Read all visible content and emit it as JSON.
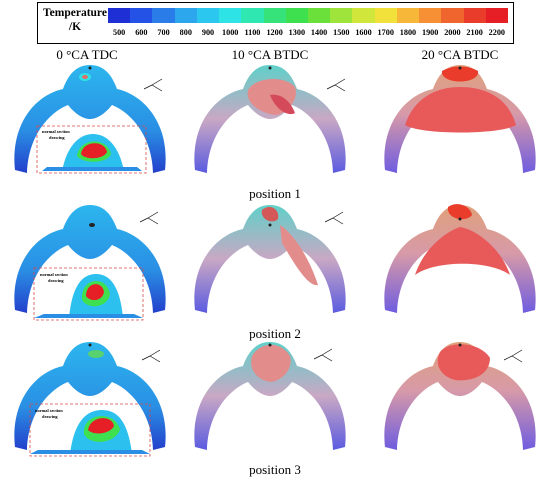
{
  "legend": {
    "title_line1": "Temperature",
    "title_line2": "/K",
    "ticks": [
      "500",
      "600",
      "700",
      "800",
      "900",
      "1000",
      "1100",
      "1200",
      "1300",
      "1400",
      "1500",
      "1600",
      "1700",
      "1800",
      "1900",
      "2000",
      "2100",
      "2200"
    ],
    "colors": [
      "#1f2fd6",
      "#2452e6",
      "#2a7de9",
      "#2ca6ec",
      "#2bc7ee",
      "#2ee3e6",
      "#2fe7b0",
      "#35e37a",
      "#3fe050",
      "#6be03a",
      "#9fe43a",
      "#d0e63a",
      "#f2e13a",
      "#f7b83a",
      "#f78f34",
      "#f0652e",
      "#ea3c2b",
      "#e61e26"
    ]
  },
  "columns": [
    "0 °CA TDC",
    "10 °CA BTDC",
    "20 °CA BTDC"
  ],
  "rows": [
    "position 1",
    "position 2",
    "position 3"
  ],
  "insets": [
    {
      "line1": "normal section",
      "line2": "drawing"
    },
    {
      "line1": "normal section",
      "line2": "drawing"
    },
    {
      "line1": "normal section",
      "line2": "drawing"
    }
  ],
  "axes": {
    "x": "x",
    "y": "y",
    "z": "z"
  }
}
